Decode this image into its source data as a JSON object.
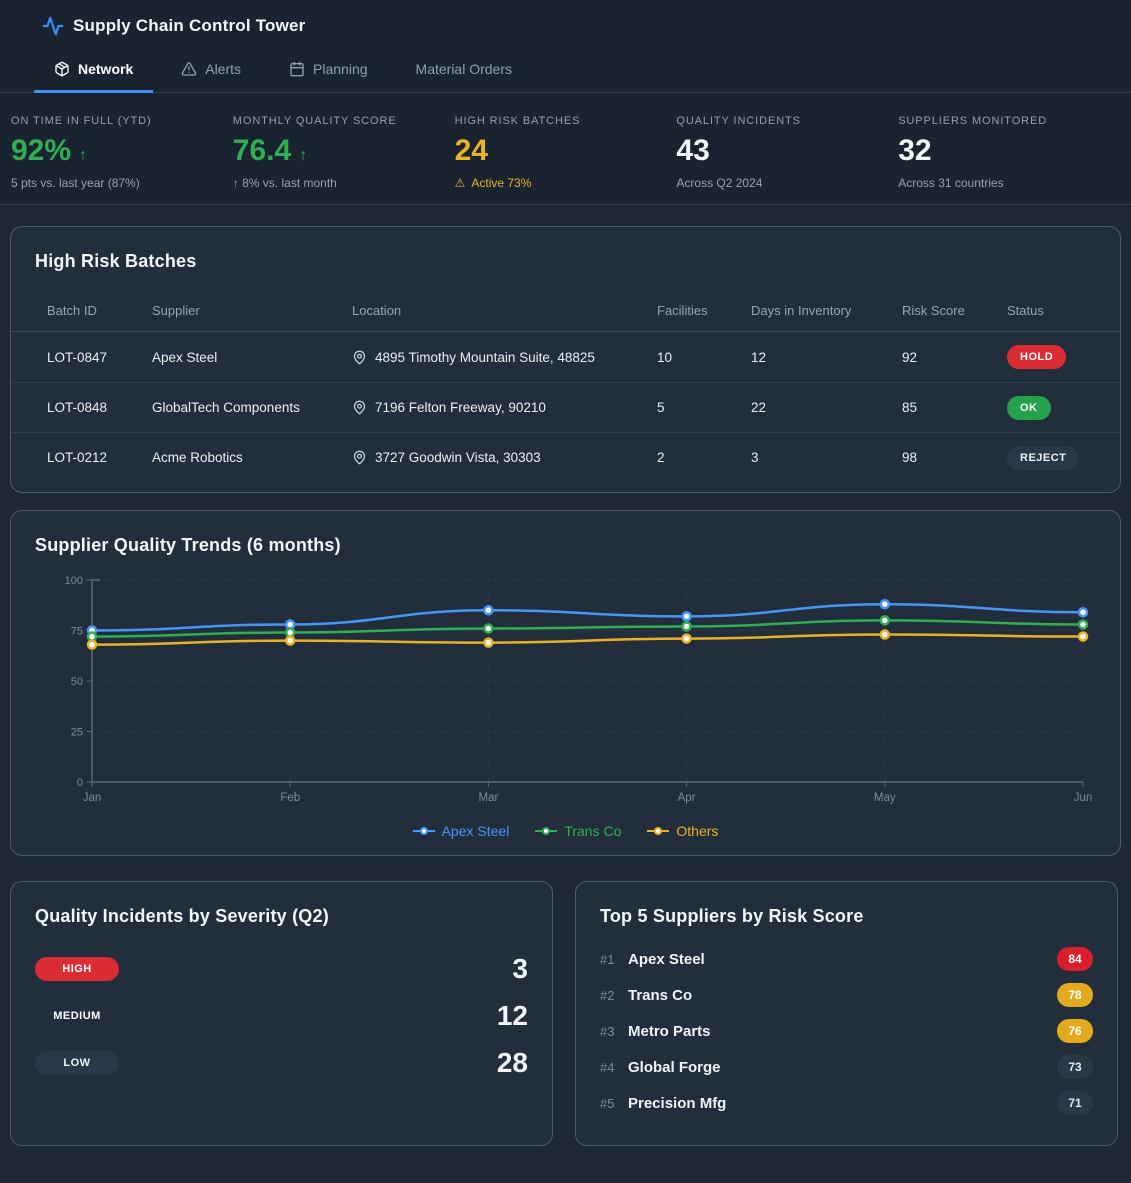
{
  "app": {
    "title": "Supply Chain Control Tower"
  },
  "tabs": [
    {
      "label": "Network",
      "active": true,
      "icon": "package-icon"
    },
    {
      "label": "Alerts",
      "active": false,
      "icon": "alert-triangle-icon"
    },
    {
      "label": "Planning",
      "active": false,
      "icon": "calendar-icon"
    },
    {
      "label": "Material Orders",
      "active": false,
      "icon": ""
    }
  ],
  "kpis": [
    {
      "label": "ON TIME IN FULL (YTD)",
      "value": "92%",
      "arrow": "↑",
      "variant": "green",
      "sub": "5 pts vs. last year (87%)",
      "sub_variant": "gray"
    },
    {
      "label": "MONTHLY QUALITY SCORE",
      "value": "76.4",
      "arrow": "↑",
      "variant": "green",
      "sub": "↑ 8% vs. last month",
      "sub_variant": "gray"
    },
    {
      "label": "HIGH RISK BATCHES",
      "value": "24",
      "variant": "amber",
      "sub_icon": "⚠",
      "sub": "Active 73%",
      "sub_variant": "amber"
    },
    {
      "label": "QUALITY INCIDENTS",
      "value": "43",
      "variant": "white",
      "sub": "Across Q2 2024",
      "sub_variant": "gray"
    },
    {
      "label": "SUPPLIERS MONITORED",
      "value": "32",
      "variant": "white",
      "sub": "Across 31 countries",
      "sub_variant": "gray"
    }
  ],
  "batches": {
    "title": "High Risk Batches",
    "columns": [
      "Batch ID",
      "Supplier",
      "Location",
      "Facilities",
      "Days in Inventory",
      "Risk Score",
      "Status"
    ],
    "rows": [
      {
        "id": "LOT-0847",
        "supplier": "Apex Steel",
        "location": "4895 Timothy Mountain Suite, 48825",
        "facilities": "10",
        "days": "12",
        "risk": "92",
        "status": "HOLD",
        "status_variant": "red"
      },
      {
        "id": "LOT-0848",
        "supplier": "GlobalTech Components",
        "location": "7196 Felton Freeway, 90210",
        "facilities": "5",
        "days": "22",
        "risk": "85",
        "status": "OK",
        "status_variant": "green"
      },
      {
        "id": "LOT-0212",
        "supplier": "Acme Robotics",
        "location": "3727 Goodwin Vista, 30303",
        "facilities": "2",
        "days": "3",
        "risk": "98",
        "status": "REJECT",
        "status_variant": "neutral"
      }
    ]
  },
  "chart_data": {
    "type": "line",
    "title": "Supplier Quality Trends (6 months)",
    "categories": [
      "Jan",
      "Feb",
      "Mar",
      "Apr",
      "May",
      "Jun"
    ],
    "series": [
      {
        "name": "Apex Steel",
        "color": "#4596f7",
        "values": [
          75,
          78,
          85,
          82,
          88,
          84
        ]
      },
      {
        "name": "Trans Co",
        "color": "#2fae52",
        "values": [
          72,
          74,
          76,
          77,
          80,
          78
        ]
      },
      {
        "name": "Others",
        "color": "#eab225",
        "values": [
          68,
          70,
          69,
          71,
          73,
          72
        ]
      }
    ],
    "ylim": [
      0,
      100
    ],
    "yticks": [
      0,
      25,
      50,
      75,
      100
    ],
    "grid": true,
    "legend_position": "bottom"
  },
  "incidents": {
    "title": "Quality Incidents by Severity (Q2)",
    "rows": [
      {
        "label": "HIGH",
        "variant": "red",
        "value": "3"
      },
      {
        "label": "MEDIUM",
        "variant": "amber",
        "value": "12"
      },
      {
        "label": "LOW",
        "variant": "neutral",
        "value": "28"
      }
    ]
  },
  "top_suppliers": {
    "title": "Top 5 Suppliers by Risk Score",
    "rows": [
      {
        "rank": "#1",
        "name": "Apex Steel",
        "score": "84",
        "variant": "red"
      },
      {
        "rank": "#2",
        "name": "Trans Co",
        "score": "78",
        "variant": "amber"
      },
      {
        "rank": "#3",
        "name": "Metro Parts",
        "score": "76",
        "variant": "amber"
      },
      {
        "rank": "#4",
        "name": "Global Forge",
        "score": "73",
        "variant": "neutral"
      },
      {
        "rank": "#5",
        "name": "Precision Mfg",
        "score": "71",
        "variant": "neutral"
      }
    ]
  },
  "colors": {
    "accent_blue": "#3d8df5",
    "green": "#2fae52",
    "amber": "#eab225",
    "red": "#d92c34",
    "card_bg": "#232e3c",
    "top_bg": "#1a2330",
    "body_bg": "#1e2835"
  }
}
